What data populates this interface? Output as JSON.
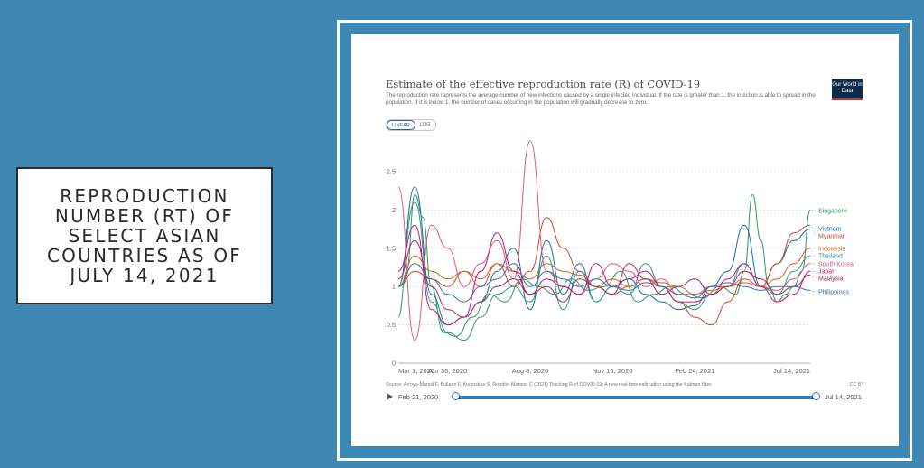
{
  "slide_title": [
    "REPRODUCTION",
    "NUMBER (RT) OF",
    "SELECT ASIAN",
    "COUNTRIES AS OF",
    "JULY 14, 2021"
  ],
  "chart_data": {
    "type": "line",
    "title": "Estimate of the effective reproduction rate (R) of COVID-19",
    "subtitle": "The reproduction rate represents the average number of new infections caused by a single infected individual. If the rate is greater than 1, the infection is able to spread in the population. If it is below 1, the number of cases occurring in the population will gradually decrease to zero.",
    "xlabel": "",
    "ylabel": "",
    "ylim": [
      0,
      2.9
    ],
    "yticks": [
      0,
      0.5,
      1,
      1.5,
      2,
      2.5
    ],
    "x_ticks": [
      "Mar 1, 2020",
      "Apr 30, 2020",
      "Aug 8, 2020",
      "Nov 16, 2020",
      "Feb 24, 2021",
      "Jul 14, 2021"
    ],
    "x_tick_days": [
      0,
      60,
      160,
      260,
      360,
      500
    ],
    "x_domain": [
      0,
      500
    ],
    "series": [
      {
        "name": "Singapore",
        "color": "#2e9e5b",
        "x": [
          0,
          10,
          20,
          30,
          40,
          55,
          70,
          90,
          110,
          130,
          150,
          170,
          190,
          210,
          230,
          250,
          270,
          290,
          310,
          330,
          350,
          370,
          390,
          410,
          420,
          430,
          440,
          450,
          460,
          470,
          480,
          490,
          500
        ],
        "values": [
          0.6,
          1.2,
          2.2,
          1.9,
          1.0,
          0.4,
          0.35,
          0.6,
          0.9,
          0.8,
          1.1,
          1.0,
          0.9,
          1.1,
          0.95,
          1.0,
          1.2,
          0.8,
          0.9,
          1.0,
          0.9,
          0.85,
          1.0,
          0.9,
          1.2,
          2.2,
          1.6,
          1.0,
          0.8,
          0.9,
          1.0,
          1.2,
          2.0
        ]
      },
      {
        "name": "Vietnam",
        "color": "#1f6aa5",
        "x": [
          0,
          20,
          40,
          60,
          80,
          100,
          120,
          140,
          160,
          180,
          200,
          220,
          240,
          260,
          280,
          300,
          320,
          340,
          360,
          380,
          400,
          420,
          440,
          460,
          480,
          500
        ],
        "values": [
          1.0,
          2.3,
          0.9,
          0.5,
          0.6,
          0.8,
          1.2,
          1.5,
          0.7,
          1.6,
          0.9,
          1.3,
          0.8,
          1.0,
          1.1,
          0.9,
          0.8,
          0.7,
          0.75,
          1.0,
          1.2,
          1.8,
          1.0,
          1.3,
          1.6,
          1.75
        ]
      },
      {
        "name": "Myanmar",
        "color": "#c0502a",
        "x": [
          0,
          20,
          40,
          60,
          80,
          100,
          120,
          140,
          160,
          180,
          200,
          220,
          240,
          260,
          280,
          300,
          320,
          340,
          360,
          380,
          400,
          420,
          440,
          460,
          480,
          500
        ],
        "values": [
          1.0,
          1.2,
          1.1,
          1.0,
          1.2,
          1.0,
          1.3,
          1.0,
          1.2,
          1.9,
          1.5,
          1.2,
          1.0,
          0.9,
          1.0,
          1.1,
          1.0,
          0.8,
          0.6,
          0.5,
          0.8,
          1.1,
          1.0,
          1.3,
          1.7,
          1.8
        ]
      },
      {
        "name": "Indonesia",
        "color": "#d0621f",
        "x": [
          0,
          20,
          40,
          60,
          80,
          100,
          120,
          140,
          160,
          180,
          200,
          220,
          240,
          260,
          280,
          300,
          320,
          340,
          360,
          380,
          400,
          420,
          440,
          460,
          480,
          500
        ],
        "values": [
          1.0,
          1.4,
          1.2,
          1.1,
          1.2,
          1.1,
          1.3,
          1.2,
          1.1,
          1.3,
          1.2,
          1.15,
          1.0,
          1.1,
          1.0,
          1.1,
          1.05,
          1.0,
          0.9,
          0.95,
          1.0,
          1.05,
          1.0,
          1.1,
          1.3,
          1.5
        ]
      },
      {
        "name": "Thailand",
        "color": "#2a9a8a",
        "x": [
          0,
          20,
          40,
          60,
          80,
          100,
          120,
          140,
          160,
          180,
          200,
          220,
          240,
          260,
          280,
          300,
          320,
          340,
          360,
          380,
          400,
          420,
          440,
          460,
          480,
          500
        ],
        "values": [
          1.0,
          2.1,
          0.8,
          0.4,
          0.3,
          0.6,
          0.9,
          1.0,
          0.8,
          1.4,
          0.7,
          1.2,
          0.8,
          1.0,
          0.9,
          1.3,
          1.0,
          0.8,
          0.7,
          0.9,
          1.0,
          1.3,
          1.0,
          0.9,
          1.2,
          1.4
        ]
      },
      {
        "name": "South Korea",
        "color": "#e05a7a",
        "x": [
          0,
          20,
          40,
          60,
          80,
          100,
          120,
          140,
          160,
          180,
          200,
          220,
          240,
          260,
          280,
          300,
          320,
          340,
          360,
          380,
          400,
          420,
          440,
          460,
          480,
          500
        ],
        "values": [
          2.3,
          0.3,
          1.8,
          1.5,
          1.0,
          1.3,
          1.6,
          1.1,
          2.9,
          1.2,
          1.0,
          0.9,
          1.1,
          1.3,
          1.2,
          1.0,
          1.1,
          0.9,
          0.9,
          1.0,
          1.0,
          1.1,
          1.0,
          0.95,
          1.1,
          1.3
        ]
      },
      {
        "name": "Japan",
        "color": "#c2187a",
        "x": [
          0,
          20,
          40,
          60,
          80,
          100,
          120,
          140,
          160,
          180,
          200,
          220,
          240,
          260,
          280,
          300,
          320,
          340,
          360,
          380,
          400,
          420,
          440,
          460,
          480,
          500
        ],
        "values": [
          1.2,
          1.8,
          0.7,
          0.5,
          0.6,
          1.2,
          1.7,
          1.2,
          0.9,
          1.1,
          1.0,
          0.9,
          1.3,
          1.0,
          1.1,
          1.2,
          1.0,
          0.8,
          0.8,
          0.9,
          1.1,
          1.3,
          1.0,
          0.8,
          0.9,
          1.2
        ]
      },
      {
        "name": "Malaysia",
        "color": "#a03060",
        "x": [
          0,
          20,
          40,
          60,
          80,
          100,
          120,
          140,
          160,
          180,
          200,
          220,
          240,
          260,
          280,
          300,
          320,
          340,
          360,
          380,
          400,
          420,
          440,
          460,
          480,
          500
        ],
        "values": [
          1.1,
          1.6,
          1.0,
          0.7,
          0.6,
          0.8,
          1.0,
          1.1,
          0.9,
          1.0,
          0.8,
          1.1,
          1.0,
          0.9,
          1.3,
          1.1,
          0.9,
          1.0,
          1.1,
          0.9,
          1.0,
          1.2,
          1.1,
          0.9,
          1.0,
          1.15
        ]
      },
      {
        "name": "Philippines",
        "color": "#3d6fb4",
        "x": [
          0,
          20,
          40,
          60,
          80,
          100,
          120,
          140,
          160,
          180,
          200,
          220,
          240,
          260,
          280,
          300,
          320,
          340,
          360,
          380,
          400,
          420,
          440,
          460,
          480,
          500
        ],
        "values": [
          1.0,
          1.3,
          1.1,
          0.9,
          0.8,
          1.0,
          1.1,
          1.3,
          1.0,
          1.2,
          1.1,
          1.0,
          1.1,
          1.0,
          0.95,
          1.05,
          1.0,
          0.9,
          0.85,
          1.0,
          1.05,
          1.0,
          0.95,
          1.0,
          1.0,
          0.95
        ]
      }
    ],
    "legend_position": "right"
  },
  "source": "Source: Arroyo-Marioli F, Bullano F, Kucinskas S, Rondón-Moreno C (2021) Tracking R of COVID-19: A new real-time estimation using the Kalman filter.",
  "license": "CC BY",
  "logo": "Our World in Data",
  "toggle": {
    "linear": "LINEAR",
    "log": "LOG"
  },
  "timeline": {
    "start": "Feb 21, 2020",
    "end": "Jul 14, 2021"
  }
}
